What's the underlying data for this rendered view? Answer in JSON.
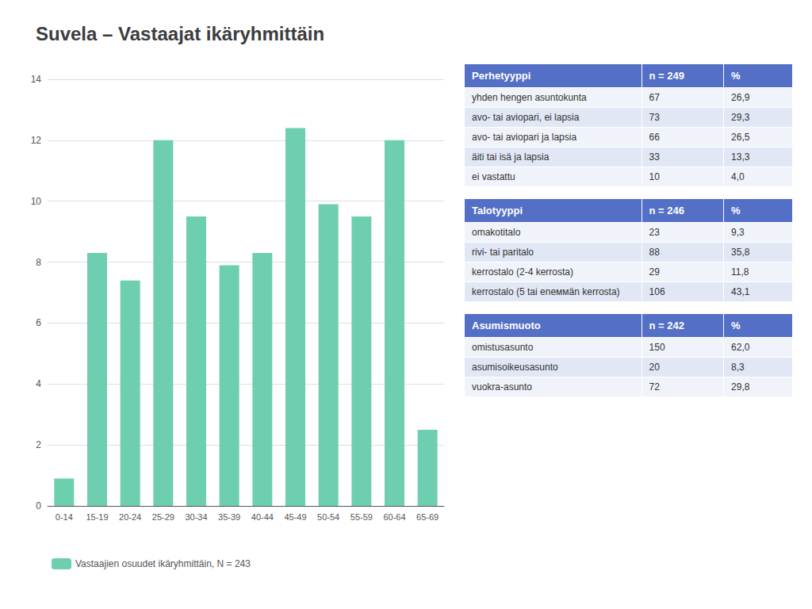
{
  "chart_data": [
    {
      "type": "bar",
      "title": "Suvela – Vastaajat ikäryhmittäin",
      "categories": [
        "0-14",
        "15-19",
        "20-24",
        "25-29",
        "30-34",
        "35-39",
        "40-44",
        "45-49",
        "50-54",
        "55-59",
        "60-64",
        "65-69"
      ],
      "series": [
        {
          "name": "Vastaajien osuudet ikäryhmittäin, N = 243",
          "color": "#6dcfb0",
          "values": [
            0.9,
            8.3,
            7.4,
            12.0,
            9.5,
            7.9,
            8.3,
            12.4,
            9.9,
            9.5,
            12.0,
            2.5
          ]
        }
      ],
      "ylim": [
        0,
        14
      ],
      "yticks": [
        0,
        2,
        4,
        6,
        8,
        10,
        12,
        14
      ],
      "grid": true,
      "legend": "bottom"
    },
    {
      "type": "table",
      "header": [
        "Perhetyyppi",
        "n = 249",
        "%"
      ],
      "rows": [
        [
          "yhden hengen asuntokunta",
          "67",
          "26,9"
        ],
        [
          "avo- tai aviopari, ei lapsia",
          "73",
          "29,3"
        ],
        [
          "avo- tai aviopari ja lapsia",
          "66",
          "26,5"
        ],
        [
          "äiti tai isä ja lapsia",
          "33",
          "13,3"
        ],
        [
          "ei vastattu",
          "10",
          "4,0"
        ]
      ]
    },
    {
      "type": "table",
      "header": [
        "Talotyyppi",
        "n = 246",
        "%"
      ],
      "rows": [
        [
          "omakotitalo",
          "23",
          "9,3"
        ],
        [
          "rivi- tai paritalo",
          "88",
          "35,8"
        ],
        [
          "kerrostalo (2-4 kerrosta)",
          "29",
          "11,8"
        ],
        [
          "kerrostalo (5 tai enеммän kerrosta)",
          "106",
          "43,1"
        ]
      ]
    },
    {
      "type": "table",
      "header": [
        "Asumismuoto",
        "n = 242",
        "%"
      ],
      "rows": [
        [
          "omistusasunto",
          "150",
          "62,0"
        ],
        [
          "asumisoikeusasunto",
          "20",
          "8,3"
        ],
        [
          "vuokra-asunto",
          "72",
          "29,8"
        ]
      ]
    }
  ]
}
